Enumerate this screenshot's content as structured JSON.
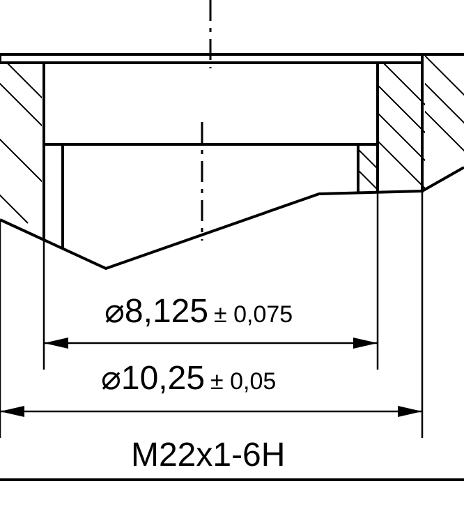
{
  "drawing": {
    "dimensions": [
      {
        "symbol": "⌀",
        "value": "8,125",
        "tolerance": "± 0,075"
      },
      {
        "symbol": "⌀",
        "value": "10,25",
        "tolerance": "± 0,05"
      }
    ],
    "thread_callout": "M22x1-6H"
  }
}
